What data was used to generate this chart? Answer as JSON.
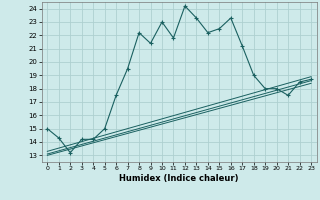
{
  "title": "",
  "xlabel": "Humidex (Indice chaleur)",
  "ylabel": "",
  "background_color": "#ceeaea",
  "grid_color": "#aed0d0",
  "line_color": "#1a6060",
  "xlim": [
    -0.5,
    23.5
  ],
  "ylim": [
    12.5,
    24.5
  ],
  "xticks": [
    0,
    1,
    2,
    3,
    4,
    5,
    6,
    7,
    8,
    9,
    10,
    11,
    12,
    13,
    14,
    15,
    16,
    17,
    18,
    19,
    20,
    21,
    22,
    23
  ],
  "yticks": [
    13,
    14,
    15,
    16,
    17,
    18,
    19,
    20,
    21,
    22,
    23,
    24
  ],
  "main_line_x": [
    0,
    1,
    2,
    3,
    4,
    5,
    6,
    7,
    8,
    9,
    10,
    11,
    12,
    13,
    14,
    15,
    16,
    17,
    18,
    19,
    20,
    21,
    22,
    23
  ],
  "main_line_y": [
    15.0,
    14.3,
    13.2,
    14.2,
    14.2,
    15.0,
    17.5,
    19.5,
    22.2,
    21.4,
    23.0,
    21.8,
    24.2,
    23.3,
    22.2,
    22.5,
    23.3,
    21.2,
    19.0,
    18.0,
    18.0,
    17.5,
    18.5,
    18.7
  ],
  "line2_x": [
    0,
    23
  ],
  "line2_y": [
    13.0,
    18.4
  ],
  "line3_x": [
    0,
    23
  ],
  "line3_y": [
    13.1,
    18.6
  ],
  "line4_x": [
    0,
    23
  ],
  "line4_y": [
    13.3,
    18.9
  ]
}
